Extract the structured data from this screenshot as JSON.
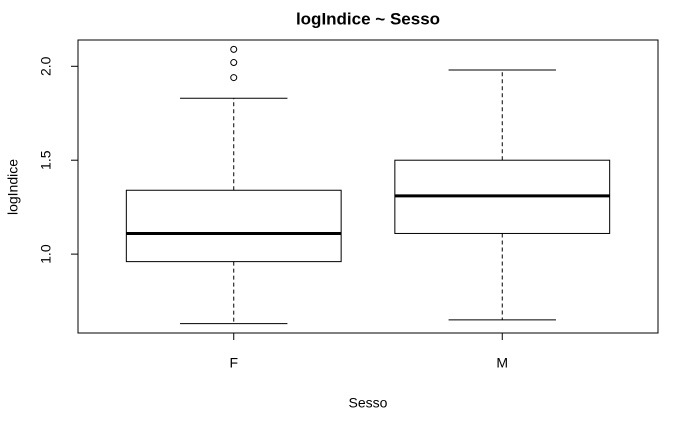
{
  "chart_data": {
    "type": "box",
    "title": "logIndice ~ Sesso",
    "xlabel": "Sesso",
    "ylabel": "logIndice",
    "categories": [
      "F",
      "M"
    ],
    "boxes": [
      {
        "whisker_low": 0.63,
        "q1": 0.96,
        "median": 1.11,
        "q3": 1.34,
        "whisker_high": 1.83,
        "outliers": [
          1.94,
          2.02,
          2.09
        ]
      },
      {
        "whisker_low": 0.65,
        "q1": 1.11,
        "median": 1.31,
        "q3": 1.5,
        "whisker_high": 1.98,
        "outliers": []
      }
    ],
    "color": "#ffffff",
    "ylim": [
      0.58,
      2.14
    ],
    "yticks": [
      {
        "value": 1,
        "label": "1.0"
      },
      1.5,
      {
        "value": 2,
        "label": "2.0"
      }
    ]
  }
}
